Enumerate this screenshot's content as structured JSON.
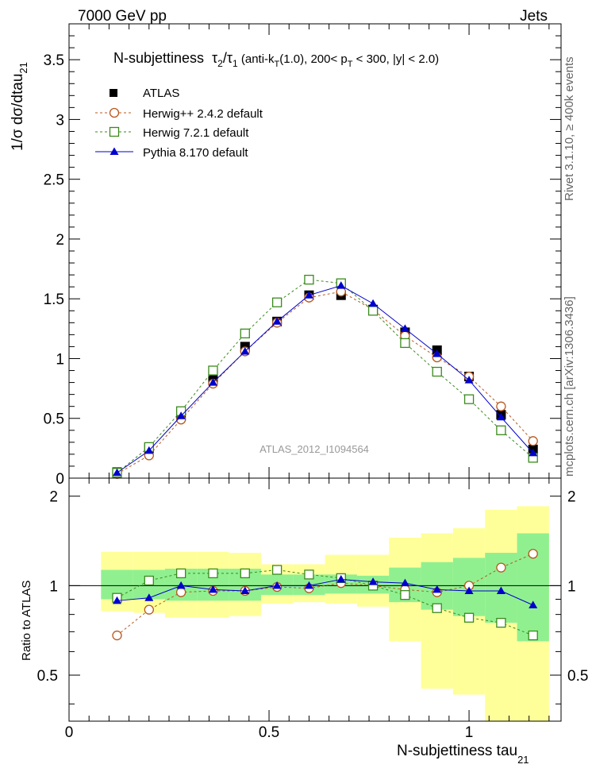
{
  "header": {
    "energy": "7000 GeV pp",
    "category": "Jets"
  },
  "side_labels": {
    "rivet": "Rivet 3.1.10, ≥ 400k events",
    "mcplots": "mcplots.cern.ch [arXiv:1306.3436]"
  },
  "chart_data": [
    {
      "type": "line",
      "title": "N-subjettiness  τ₂/τ₁ (anti-k_T(1.0), 200< p_T < 300, |y| < 2.0)",
      "title_parts": {
        "main": "N-subjettiness",
        "t2": "τ",
        "t2sub": "2",
        "slash": "/",
        "t1": "τ",
        "t1sub": "1",
        "p1": " (anti-k",
        "ksub": "T",
        "p2": "(1.0), 200< p",
        "psub": "T",
        "p3": " < 300, |y| < 2.0)"
      },
      "ylabel": "1/σ dσ/dtau_21",
      "ylabel_parts": {
        "main": "1/σ dσ/dtau",
        "sub": "21"
      },
      "watermark": "ATLAS_2012_I1094564",
      "xlim": [
        0,
        1.23
      ],
      "ylim": [
        0,
        3.8
      ],
      "yticks": [
        0,
        0.5,
        1,
        1.5,
        2,
        2.5,
        3,
        3.5
      ],
      "ytick_labels": [
        "0",
        "0.5",
        "1",
        "1.5",
        "2",
        "2.5",
        "3",
        "3.5"
      ],
      "x": [
        0.12,
        0.2,
        0.28,
        0.36,
        0.44,
        0.52,
        0.6,
        0.68,
        0.76,
        0.84,
        0.92,
        1.0,
        1.08,
        1.16
      ],
      "series": [
        {
          "name": "ATLAS",
          "color": "#000000",
          "marker": "filled-square",
          "line": "none",
          "values": [
            0.05,
            0.25,
            0.52,
            0.82,
            1.1,
            1.31,
            1.53,
            1.53,
            1.41,
            1.22,
            1.07,
            0.85,
            0.53,
            0.24
          ]
        },
        {
          "name": "Herwig++ 2.4.2 default",
          "color": "#b8581e",
          "marker": "open-circle",
          "line": "dashed",
          "values": [
            0.035,
            0.19,
            0.49,
            0.79,
            1.06,
            1.3,
            1.51,
            1.56,
            1.41,
            1.19,
            1.01,
            0.85,
            0.6,
            0.31
          ]
        },
        {
          "name": "Herwig 7.2.1 default",
          "color": "#3a8a1c",
          "marker": "open-square",
          "line": "dashed",
          "values": [
            0.045,
            0.26,
            0.56,
            0.9,
            1.21,
            1.47,
            1.66,
            1.63,
            1.4,
            1.13,
            0.89,
            0.66,
            0.4,
            0.17
          ]
        },
        {
          "name": "Pythia 8.170 default",
          "color": "#0000cc",
          "marker": "filled-triangle",
          "line": "solid",
          "values": [
            0.045,
            0.23,
            0.52,
            0.8,
            1.06,
            1.31,
            1.53,
            1.61,
            1.46,
            1.25,
            1.04,
            0.82,
            0.51,
            0.21
          ]
        }
      ]
    },
    {
      "type": "line",
      "title": "Ratio to ATLAS",
      "ylabel": "Ratio to ATLAS",
      "xlabel": "N-subjettiness tau_21",
      "xlabel_parts": {
        "main": "N-subjettiness tau",
        "sub": "21"
      },
      "xlim": [
        0,
        1.23
      ],
      "ylim": [
        0.35,
        2.3
      ],
      "xticks": [
        0,
        0.5,
        1
      ],
      "xtick_labels": [
        "0",
        "0.5",
        "1"
      ],
      "yticks": [
        0.5,
        1,
        2
      ],
      "ytick_labels": [
        "0.5",
        "1",
        "2"
      ],
      "bin_edges": [
        0.08,
        0.16,
        0.24,
        0.32,
        0.4,
        0.48,
        0.56,
        0.64,
        0.72,
        0.8,
        0.88,
        0.96,
        1.04,
        1.12,
        1.2
      ],
      "band_1sigma": {
        "color": "#90f090",
        "low": [
          0.9,
          0.9,
          0.89,
          0.89,
          0.89,
          0.93,
          0.93,
          0.94,
          0.94,
          0.88,
          0.83,
          0.79,
          0.75,
          0.65
        ],
        "high": [
          1.13,
          1.13,
          1.14,
          1.14,
          1.14,
          1.09,
          1.09,
          1.09,
          1.08,
          1.15,
          1.2,
          1.24,
          1.29,
          1.5
        ]
      },
      "band_2sigma": {
        "color": "#ffff99",
        "low": [
          0.82,
          0.81,
          0.78,
          0.78,
          0.79,
          0.87,
          0.88,
          0.87,
          0.85,
          0.65,
          0.45,
          0.43,
          0.35,
          0.35
        ],
        "high": [
          1.3,
          1.3,
          1.3,
          1.3,
          1.29,
          1.18,
          1.18,
          1.27,
          1.27,
          1.45,
          1.5,
          1.56,
          1.8,
          1.85
        ]
      },
      "x": [
        0.12,
        0.2,
        0.28,
        0.36,
        0.44,
        0.52,
        0.6,
        0.68,
        0.76,
        0.84,
        0.92,
        1.0,
        1.08,
        1.16
      ],
      "series": [
        {
          "name": "Herwig++ 2.4.2 default",
          "color": "#b8581e",
          "marker": "open-circle",
          "line": "dashed",
          "values": [
            0.68,
            0.83,
            0.95,
            0.96,
            0.96,
            0.99,
            0.98,
            1.02,
            1.0,
            0.97,
            0.95,
            1.0,
            1.15,
            1.28
          ]
        },
        {
          "name": "Herwig 7.2.1 default",
          "color": "#3a8a1c",
          "marker": "open-square",
          "line": "dashed",
          "values": [
            0.91,
            1.04,
            1.1,
            1.1,
            1.1,
            1.13,
            1.09,
            1.06,
            1.0,
            0.93,
            0.84,
            0.78,
            0.75,
            0.68
          ]
        },
        {
          "name": "Pythia 8.170 default",
          "color": "#0000cc",
          "marker": "filled-triangle",
          "line": "solid",
          "values": [
            0.89,
            0.91,
            1.0,
            0.97,
            0.96,
            1.0,
            1.0,
            1.05,
            1.03,
            1.02,
            0.97,
            0.96,
            0.96,
            0.86
          ]
        }
      ]
    }
  ]
}
